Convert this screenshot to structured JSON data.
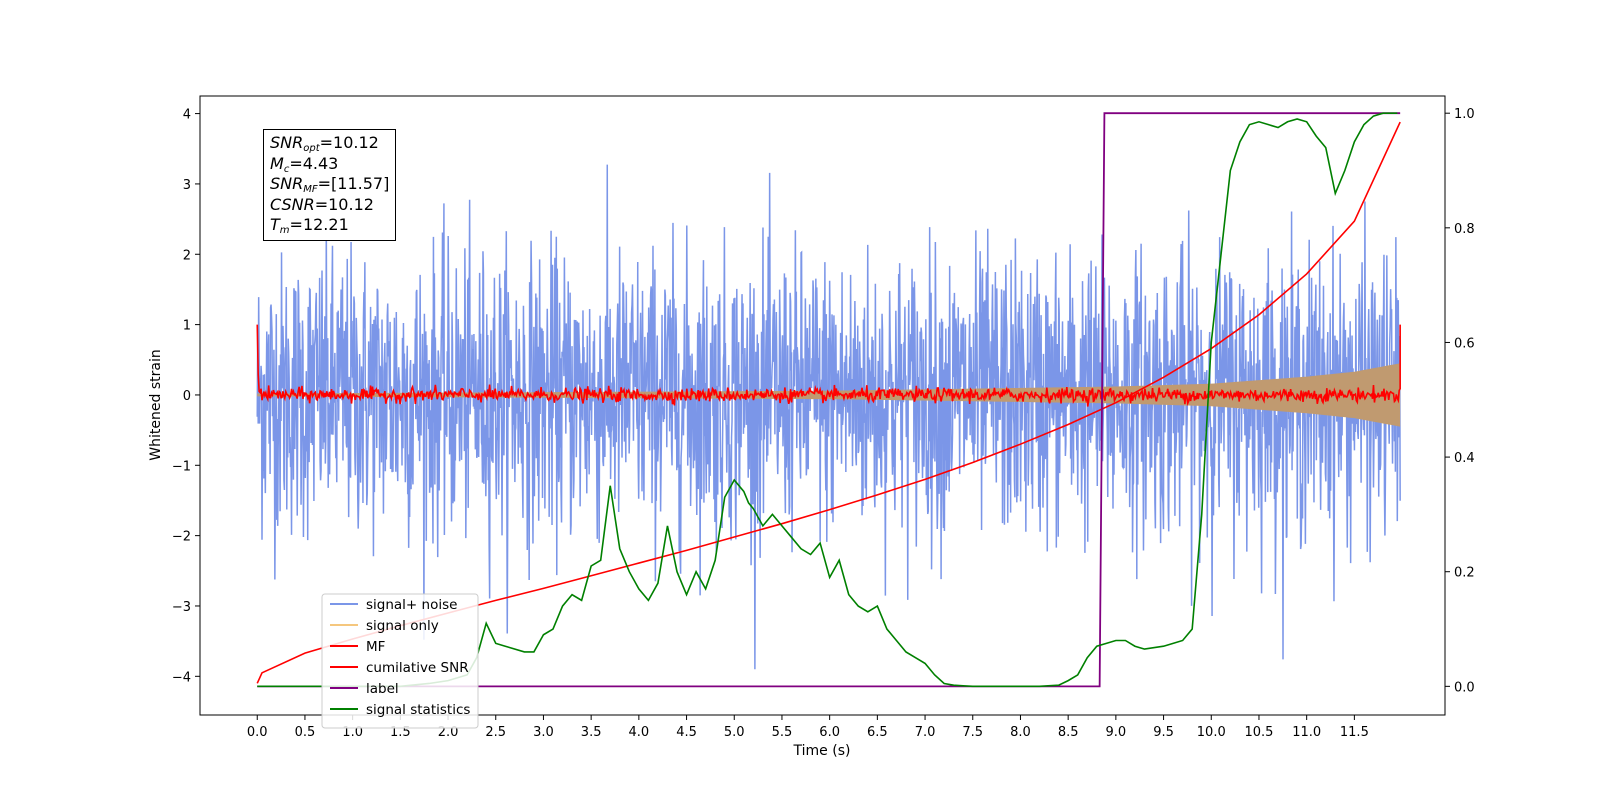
{
  "chart_data": {
    "type": "line",
    "xlabel": "Time (s)",
    "ylabel": "Whitened strain",
    "ylabel_right": "",
    "xlim": [
      -0.6,
      12.45
    ],
    "ylim": [
      -4.55,
      4.25
    ],
    "ylim_right": [
      -0.05,
      1.03
    ],
    "x_ticks": [
      "0.0",
      "0.5",
      "1.0",
      "1.5",
      "2.0",
      "2.5",
      "3.0",
      "3.5",
      "4.0",
      "4.5",
      "5.0",
      "5.5",
      "6.0",
      "6.5",
      "7.0",
      "7.5",
      "8.0",
      "8.5",
      "9.0",
      "9.5",
      "10.0",
      "10.5",
      "11.0",
      "11.5"
    ],
    "y_ticks": [
      "4",
      "3",
      "2",
      "1",
      "0",
      "−1",
      "−2",
      "−3",
      "−4"
    ],
    "y_ticks_right": [
      "1.0",
      "0.8",
      "0.6",
      "0.4",
      "0.2",
      "0.0"
    ],
    "annotation": {
      "snr_opt": "=10.12",
      "mc": "=4.43",
      "snr_mf": "=[11.57]",
      "csnr": "=10.12",
      "tm": "=12.21"
    },
    "legend": {
      "placement": "lower-left",
      "entries": [
        {
          "label": "signal+ noise",
          "color": "#7b96e8"
        },
        {
          "label": "signal only",
          "color": "#f5c77e"
        },
        {
          "label": "MF",
          "color": "#ff0000"
        },
        {
          "label": "cumilative SNR",
          "color": "#ff0000"
        },
        {
          "label": "label",
          "color": "#800080"
        },
        {
          "label": "signal statistics",
          "color": "#008000"
        }
      ]
    },
    "series": [
      {
        "name": "signal+ noise",
        "axis": "left",
        "color": "#7b96e8",
        "description_range": "noise band approx ±2.6, peaks to ±3.8",
        "x_start": 0.0,
        "x_end": 11.98,
        "amplitude": 1.0
      },
      {
        "name": "signal only",
        "axis": "left",
        "color": "#c09a70",
        "envelope": [
          [
            0.0,
            0.02
          ],
          [
            6.0,
            0.06
          ],
          [
            9.0,
            0.12
          ],
          [
            10.0,
            0.16
          ],
          [
            11.0,
            0.26
          ],
          [
            11.5,
            0.33
          ],
          [
            11.98,
            0.45
          ]
        ]
      },
      {
        "name": "MF",
        "axis": "left",
        "color": "#ff0000",
        "start_value": 1.0,
        "end_value": 1.0,
        "noise_amplitude": 0.09
      },
      {
        "name": "cumilative SNR",
        "axis": "left",
        "color": "#ff0000",
        "x": [
          0.0,
          0.05,
          0.5,
          1.0,
          1.5,
          2.0,
          2.5,
          3.0,
          3.5,
          4.0,
          4.5,
          5.0,
          5.5,
          6.0,
          6.5,
          7.0,
          7.5,
          8.0,
          8.5,
          9.0,
          9.5,
          10.0,
          10.5,
          11.0,
          11.5,
          11.98
        ],
        "y": [
          -4.1,
          -3.95,
          -3.67,
          -3.47,
          -3.28,
          -3.1,
          -2.92,
          -2.75,
          -2.57,
          -2.39,
          -2.21,
          -2.02,
          -1.83,
          -1.63,
          -1.42,
          -1.2,
          -0.96,
          -0.7,
          -0.42,
          -0.11,
          0.25,
          0.66,
          1.14,
          1.72,
          2.47,
          3.88
        ]
      },
      {
        "name": "label",
        "axis": "right",
        "color": "#800080",
        "x": [
          0.0,
          8.83,
          8.88,
          11.98
        ],
        "y": [
          0.0,
          0.0,
          1.0,
          1.0
        ]
      },
      {
        "name": "signal statistics",
        "axis": "right",
        "color": "#008000",
        "x": [
          0.0,
          0.5,
          1.0,
          1.5,
          1.8,
          2.0,
          2.2,
          2.3,
          2.4,
          2.5,
          2.6,
          2.8,
          2.9,
          3.0,
          3.1,
          3.2,
          3.3,
          3.4,
          3.5,
          3.6,
          3.7,
          3.8,
          3.9,
          4.0,
          4.1,
          4.2,
          4.3,
          4.4,
          4.5,
          4.6,
          4.7,
          4.8,
          4.9,
          5.0,
          5.1,
          5.15,
          5.2,
          5.3,
          5.4,
          5.5,
          5.6,
          5.7,
          5.8,
          5.9,
          6.0,
          6.1,
          6.2,
          6.3,
          6.4,
          6.5,
          6.6,
          6.7,
          6.8,
          6.9,
          7.0,
          7.1,
          7.2,
          7.3,
          7.4,
          7.5,
          7.7,
          8.0,
          8.2,
          8.4,
          8.5,
          8.6,
          8.7,
          8.8,
          8.9,
          9.0,
          9.1,
          9.2,
          9.3,
          9.5,
          9.6,
          9.7,
          9.8,
          9.9,
          10.0,
          10.1,
          10.2,
          10.3,
          10.4,
          10.5,
          10.6,
          10.7,
          10.8,
          10.9,
          11.0,
          11.1,
          11.2,
          11.3,
          11.4,
          11.5,
          11.6,
          11.7,
          11.8,
          11.9,
          11.95
        ],
        "y": [
          0.0,
          0.0,
          0.0,
          0.0,
          0.005,
          0.01,
          0.02,
          0.05,
          0.11,
          0.075,
          0.07,
          0.06,
          0.06,
          0.09,
          0.1,
          0.14,
          0.16,
          0.15,
          0.21,
          0.22,
          0.35,
          0.24,
          0.2,
          0.17,
          0.15,
          0.18,
          0.28,
          0.2,
          0.16,
          0.2,
          0.17,
          0.22,
          0.33,
          0.36,
          0.34,
          0.32,
          0.31,
          0.28,
          0.3,
          0.28,
          0.26,
          0.24,
          0.23,
          0.25,
          0.19,
          0.22,
          0.16,
          0.14,
          0.13,
          0.14,
          0.1,
          0.08,
          0.06,
          0.05,
          0.04,
          0.02,
          0.005,
          0.002,
          0.001,
          0.0,
          0.0,
          0.0,
          0.0,
          0.002,
          0.01,
          0.02,
          0.05,
          0.07,
          0.075,
          0.08,
          0.08,
          0.07,
          0.065,
          0.07,
          0.075,
          0.08,
          0.1,
          0.3,
          0.6,
          0.75,
          0.9,
          0.95,
          0.98,
          0.985,
          0.98,
          0.975,
          0.985,
          0.99,
          0.985,
          0.96,
          0.94,
          0.86,
          0.9,
          0.95,
          0.98,
          0.995,
          1.0,
          1.0,
          1.0
        ]
      }
    ]
  }
}
